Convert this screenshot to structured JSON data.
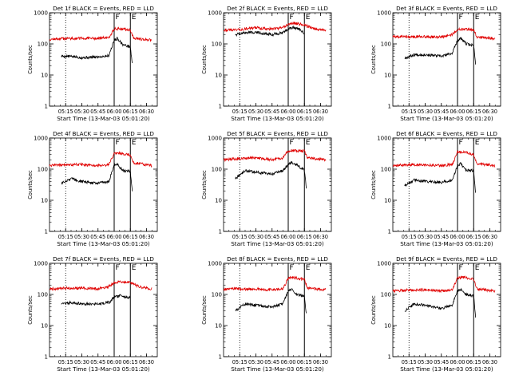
{
  "figure": {
    "xlabel": "Start Time (13-Mar-03 05:01:20)",
    "ylabel": "Counts/sec",
    "colors": {
      "events": "#000000",
      "lld": "#e00000",
      "axes": "#000000"
    }
  },
  "chart_data": [
    {
      "type": "line",
      "title": "Det 1f BLACK = Events, RED = LLD",
      "xlabel": "Start Time (13-Mar-03 05:01:20)",
      "ylabel": "Counts/sec",
      "y_scale": "log",
      "ylim": [
        1,
        1000
      ],
      "x_ticks": [
        "05:15",
        "05:30",
        "05:45",
        "06:00",
        "06:15",
        "06:30"
      ],
      "y_ticks": [
        "1",
        "10",
        "100",
        "1000"
      ],
      "markers": [
        {
          "label": "F",
          "time": "06:00",
          "style": "solid"
        },
        {
          "label": "E",
          "time": "06:15",
          "style": "solid"
        },
        {
          "label": "",
          "time": "05:15",
          "style": "dotted"
        }
      ],
      "series": [
        {
          "role": "events",
          "x": [
            "05:11",
            "05:20",
            "05:30",
            "05:45",
            "05:55",
            "06:00",
            "06:03",
            "06:08",
            "06:15",
            "06:17"
          ],
          "y": [
            40,
            40,
            36,
            38,
            42,
            130,
            150,
            95,
            80,
            20
          ]
        },
        {
          "role": "lld",
          "x": [
            "05:00",
            "05:15",
            "05:30",
            "05:45",
            "05:55",
            "06:00",
            "06:05",
            "06:15",
            "06:18",
            "06:35"
          ],
          "y": [
            140,
            150,
            150,
            150,
            160,
            300,
            310,
            280,
            150,
            130
          ]
        }
      ]
    },
    {
      "type": "line",
      "title": "Det 2f BLACK = Events, RED = LLD",
      "xlabel": "Start Time (13-Mar-03 05:01:20)",
      "ylabel": "Counts/sec",
      "y_scale": "log",
      "ylim": [
        1,
        1000
      ],
      "x_ticks": [
        "05:15",
        "05:30",
        "05:45",
        "06:00",
        "06:15",
        "06:30"
      ],
      "y_ticks": [
        "1",
        "10",
        "100",
        "1000"
      ],
      "markers": [
        {
          "label": "F",
          "time": "06:00",
          "style": "solid"
        },
        {
          "label": "E",
          "time": "06:15",
          "style": "solid"
        },
        {
          "label": "",
          "time": "05:15",
          "style": "dotted"
        }
      ],
      "series": [
        {
          "role": "events",
          "x": [
            "05:11",
            "05:20",
            "05:30",
            "05:45",
            "05:55",
            "06:00",
            "06:05",
            "06:10",
            "06:15"
          ],
          "y": [
            200,
            230,
            240,
            200,
            230,
            300,
            340,
            300,
            220
          ]
        },
        {
          "role": "lld",
          "x": [
            "05:00",
            "05:15",
            "05:30",
            "05:45",
            "05:55",
            "06:00",
            "06:05",
            "06:15",
            "06:25",
            "06:35"
          ],
          "y": [
            280,
            290,
            330,
            300,
            330,
            420,
            470,
            400,
            300,
            280
          ]
        }
      ]
    },
    {
      "type": "line",
      "title": "Det 3f BLACK = Events, RED = LLD",
      "xlabel": "Start Time (13-Mar-03 05:01:20)",
      "ylabel": "Counts/sec",
      "y_scale": "log",
      "ylim": [
        1,
        1000
      ],
      "x_ticks": [
        "05:15",
        "05:30",
        "05:45",
        "06:00",
        "06:15",
        "06:30"
      ],
      "y_ticks": [
        "1",
        "10",
        "100",
        "1000"
      ],
      "markers": [
        {
          "label": "F",
          "time": "06:00",
          "style": "solid"
        },
        {
          "label": "E",
          "time": "06:15",
          "style": "solid"
        },
        {
          "label": "",
          "time": "05:15",
          "style": "dotted"
        }
      ],
      "series": [
        {
          "role": "events",
          "x": [
            "05:11",
            "05:20",
            "05:30",
            "05:45",
            "05:55",
            "06:00",
            "06:03",
            "06:08",
            "06:15",
            "06:17"
          ],
          "y": [
            35,
            45,
            45,
            40,
            50,
            130,
            150,
            100,
            90,
            20
          ]
        },
        {
          "role": "lld",
          "x": [
            "05:00",
            "05:15",
            "05:30",
            "05:45",
            "05:55",
            "06:00",
            "06:05",
            "06:15",
            "06:18",
            "06:35"
          ],
          "y": [
            170,
            170,
            170,
            165,
            200,
            290,
            300,
            280,
            170,
            150
          ]
        }
      ]
    },
    {
      "type": "line",
      "title": "Det 4f BLACK = Events, RED = LLD",
      "xlabel": "Start Time (13-Mar-03 05:01:20)",
      "ylabel": "Counts/sec",
      "y_scale": "log",
      "ylim": [
        1,
        1000
      ],
      "x_ticks": [
        "05:15",
        "05:30",
        "05:45",
        "06:00",
        "06:15",
        "06:30"
      ],
      "y_ticks": [
        "1",
        "10",
        "100",
        "1000"
      ],
      "markers": [
        {
          "label": "F",
          "time": "06:00",
          "style": "solid"
        },
        {
          "label": "E",
          "time": "06:15",
          "style": "solid"
        },
        {
          "label": "",
          "time": "05:15",
          "style": "dotted"
        }
      ],
      "series": [
        {
          "role": "events",
          "x": [
            "05:11",
            "05:20",
            "05:30",
            "05:45",
            "05:55",
            "06:00",
            "06:03",
            "06:08",
            "06:15",
            "06:17"
          ],
          "y": [
            35,
            50,
            40,
            35,
            40,
            130,
            140,
            90,
            85,
            15
          ]
        },
        {
          "role": "lld",
          "x": [
            "05:00",
            "05:15",
            "05:30",
            "05:45",
            "05:55",
            "06:00",
            "06:05",
            "06:15",
            "06:18",
            "06:35"
          ],
          "y": [
            130,
            140,
            140,
            130,
            140,
            320,
            330,
            280,
            160,
            130
          ]
        }
      ]
    },
    {
      "type": "line",
      "title": "Det 5f BLACK = Events, RED = LLD",
      "xlabel": "Start Time (13-Mar-03 05:01:20)",
      "ylabel": "Counts/sec",
      "y_scale": "log",
      "ylim": [
        1,
        1000
      ],
      "x_ticks": [
        "05:15",
        "05:30",
        "05:45",
        "06:00",
        "06:15",
        "06:30"
      ],
      "y_ticks": [
        "1",
        "10",
        "100",
        "1000"
      ],
      "markers": [
        {
          "label": "F",
          "time": "06:00",
          "style": "solid"
        },
        {
          "label": "E",
          "time": "06:15",
          "style": "solid"
        },
        {
          "label": "",
          "time": "05:15",
          "style": "dotted"
        }
      ],
      "series": [
        {
          "role": "events",
          "x": [
            "05:11",
            "05:20",
            "05:30",
            "05:45",
            "05:55",
            "06:00",
            "06:03",
            "06:08",
            "06:15",
            "06:17"
          ],
          "y": [
            50,
            90,
            80,
            70,
            90,
            140,
            160,
            140,
            90,
            20
          ]
        },
        {
          "role": "lld",
          "x": [
            "05:00",
            "05:15",
            "05:30",
            "05:45",
            "05:55",
            "06:00",
            "06:05",
            "06:15",
            "06:18",
            "06:35"
          ],
          "y": [
            200,
            220,
            230,
            200,
            230,
            390,
            400,
            380,
            230,
            200
          ]
        }
      ]
    },
    {
      "type": "line",
      "title": "Det 6f BLACK = Events, RED = LLD",
      "xlabel": "Start Time (13-Mar-03 05:01:20)",
      "ylabel": "Counts/sec",
      "y_scale": "log",
      "ylim": [
        1,
        1000
      ],
      "x_ticks": [
        "05:15",
        "05:30",
        "05:45",
        "06:00",
        "06:15",
        "06:30"
      ],
      "y_ticks": [
        "1",
        "10",
        "100",
        "1000"
      ],
      "markers": [
        {
          "label": "F",
          "time": "06:00",
          "style": "solid"
        },
        {
          "label": "E",
          "time": "06:15",
          "style": "solid"
        },
        {
          "label": "",
          "time": "05:15",
          "style": "dotted"
        }
      ],
      "series": [
        {
          "role": "events",
          "x": [
            "05:11",
            "05:20",
            "05:30",
            "05:45",
            "05:55",
            "06:00",
            "06:03",
            "06:08",
            "06:15",
            "06:17"
          ],
          "y": [
            30,
            45,
            40,
            38,
            45,
            130,
            150,
            90,
            90,
            15
          ]
        },
        {
          "role": "lld",
          "x": [
            "05:00",
            "05:15",
            "05:30",
            "05:45",
            "05:55",
            "06:00",
            "06:05",
            "06:15",
            "06:18",
            "06:35"
          ],
          "y": [
            130,
            140,
            140,
            130,
            140,
            350,
            360,
            300,
            150,
            130
          ]
        }
      ]
    },
    {
      "type": "line",
      "title": "Det 7f BLACK = Events, RED = LLD",
      "xlabel": "Start Time (13-Mar-03 05:01:20)",
      "ylabel": "Counts/sec",
      "y_scale": "log",
      "ylim": [
        1,
        1000
      ],
      "x_ticks": [
        "05:15",
        "05:30",
        "05:45",
        "06:00",
        "06:15",
        "06:30"
      ],
      "y_ticks": [
        "1",
        "10",
        "100",
        "1000"
      ],
      "markers": [
        {
          "label": "F",
          "time": "06:00",
          "style": "solid"
        },
        {
          "label": "E",
          "time": "06:15",
          "style": "solid"
        },
        {
          "label": "",
          "time": "05:15",
          "style": "dotted"
        }
      ],
      "series": [
        {
          "role": "events",
          "x": [
            "05:11",
            "05:20",
            "05:30",
            "05:45",
            "05:55",
            "06:00",
            "06:05",
            "06:10",
            "06:15"
          ],
          "y": [
            50,
            55,
            50,
            50,
            55,
            80,
            90,
            85,
            80
          ]
        },
        {
          "role": "lld",
          "x": [
            "05:00",
            "05:15",
            "05:30",
            "05:45",
            "05:55",
            "06:00",
            "06:05",
            "06:15",
            "06:25",
            "06:35"
          ],
          "y": [
            150,
            160,
            160,
            150,
            180,
            230,
            260,
            240,
            170,
            150
          ]
        }
      ]
    },
    {
      "type": "line",
      "title": "Det 8f BLACK = Events, RED = LLD",
      "xlabel": "Start Time (13-Mar-03 05:01:20)",
      "ylabel": "Counts/sec",
      "y_scale": "log",
      "ylim": [
        1,
        1000
      ],
      "x_ticks": [
        "05:15",
        "05:30",
        "05:45",
        "06:00",
        "06:15",
        "06:30"
      ],
      "y_ticks": [
        "1",
        "10",
        "100",
        "1000"
      ],
      "markers": [
        {
          "label": "F",
          "time": "06:00",
          "style": "solid"
        },
        {
          "label": "E",
          "time": "06:15",
          "style": "solid"
        },
        {
          "label": "",
          "time": "05:15",
          "style": "dotted"
        }
      ],
      "series": [
        {
          "role": "events",
          "x": [
            "05:11",
            "05:20",
            "05:30",
            "05:45",
            "05:55",
            "06:00",
            "06:03",
            "06:08",
            "06:15",
            "06:17"
          ],
          "y": [
            30,
            50,
            45,
            40,
            50,
            130,
            150,
            100,
            90,
            20
          ]
        },
        {
          "role": "lld",
          "x": [
            "05:00",
            "05:15",
            "05:30",
            "05:45",
            "05:55",
            "06:00",
            "06:05",
            "06:15",
            "06:18",
            "06:35"
          ],
          "y": [
            150,
            150,
            150,
            140,
            150,
            330,
            350,
            300,
            160,
            140
          ]
        }
      ]
    },
    {
      "type": "line",
      "title": "Det 9f BLACK = Events, RED = LLD",
      "xlabel": "Start Time (13-Mar-03 05:01:20)",
      "ylabel": "Counts/sec",
      "y_scale": "log",
      "ylim": [
        1,
        1000
      ],
      "x_ticks": [
        "05:15",
        "05:30",
        "05:45",
        "06:00",
        "06:15",
        "06:30"
      ],
      "y_ticks": [
        "1",
        "10",
        "100",
        "1000"
      ],
      "markers": [
        {
          "label": "F",
          "time": "06:00",
          "style": "solid"
        },
        {
          "label": "E",
          "time": "06:15",
          "style": "solid"
        },
        {
          "label": "",
          "time": "05:15",
          "style": "dotted"
        }
      ],
      "series": [
        {
          "role": "events",
          "x": [
            "05:11",
            "05:20",
            "05:30",
            "05:45",
            "05:55",
            "06:00",
            "06:03",
            "06:08",
            "06:15",
            "06:17"
          ],
          "y": [
            30,
            50,
            45,
            35,
            45,
            130,
            150,
            100,
            90,
            15
          ]
        },
        {
          "role": "lld",
          "x": [
            "05:00",
            "05:15",
            "05:30",
            "05:45",
            "05:55",
            "06:00",
            "06:05",
            "06:15",
            "06:18",
            "06:35"
          ],
          "y": [
            130,
            140,
            140,
            130,
            140,
            340,
            360,
            300,
            150,
            130
          ]
        }
      ]
    }
  ]
}
